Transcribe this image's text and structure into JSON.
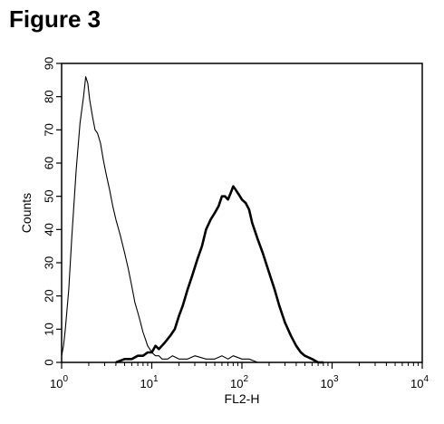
{
  "figure": {
    "title": "Figure 3"
  },
  "chart_data": {
    "type": "line",
    "xlabel": "FL2-H",
    "ylabel": "Counts",
    "xscale": "log",
    "xlim": [
      1,
      10000
    ],
    "ylim": [
      0,
      90
    ],
    "xticks": [
      {
        "value": 1,
        "base": "10",
        "exp": "0"
      },
      {
        "value": 10,
        "base": "10",
        "exp": "1"
      },
      {
        "value": 100,
        "base": "10",
        "exp": "2"
      },
      {
        "value": 1000,
        "base": "10",
        "exp": "3"
      },
      {
        "value": 10000,
        "base": "10",
        "exp": "4"
      }
    ],
    "yticks": [
      0,
      10,
      20,
      30,
      40,
      50,
      60,
      70,
      80,
      90
    ],
    "series": [
      {
        "style": "thin",
        "x": [
          1.0,
          1.05,
          1.1,
          1.2,
          1.3,
          1.45,
          1.6,
          1.75,
          1.85,
          1.95,
          2.05,
          2.2,
          2.35,
          2.5,
          2.7,
          2.9,
          3.1,
          3.4,
          3.7,
          4.0,
          4.5,
          5.0,
          5.5,
          6.0,
          6.5,
          7.0,
          7.5,
          8.0,
          8.5,
          9.0,
          9.5,
          10,
          11,
          12,
          13,
          15,
          17,
          20,
          25,
          30,
          40,
          50,
          60,
          70,
          80,
          100,
          120,
          150,
          200
        ],
        "y": [
          2,
          5,
          10,
          22,
          38,
          58,
          72,
          80,
          86,
          84,
          79,
          74,
          70,
          69,
          66,
          61,
          57,
          52,
          47,
          43,
          38,
          33,
          28,
          23,
          18,
          15,
          12,
          9,
          7,
          5,
          4,
          3,
          2,
          2,
          1,
          1,
          2,
          1,
          1,
          2,
          1,
          1,
          2,
          1,
          2,
          1,
          1,
          0,
          0
        ]
      },
      {
        "style": "thick",
        "x": [
          4,
          5,
          6,
          7,
          8,
          9,
          10,
          11,
          12,
          14,
          16,
          18,
          20,
          22,
          25,
          28,
          32,
          36,
          40,
          45,
          50,
          55,
          60,
          65,
          70,
          75,
          80,
          85,
          90,
          95,
          100,
          110,
          120,
          130,
          150,
          170,
          200,
          230,
          260,
          300,
          350,
          400,
          450,
          500,
          600,
          700,
          800
        ],
        "y": [
          0,
          1,
          1,
          2,
          2,
          3,
          3,
          5,
          4,
          6,
          8,
          10,
          14,
          17,
          22,
          26,
          31,
          35,
          40,
          43,
          45,
          47,
          50,
          50,
          49,
          51,
          53,
          52,
          51,
          50,
          49,
          48,
          46,
          42,
          37,
          33,
          27,
          22,
          17,
          12,
          8,
          5,
          3,
          2,
          1,
          0,
          0
        ]
      }
    ]
  }
}
